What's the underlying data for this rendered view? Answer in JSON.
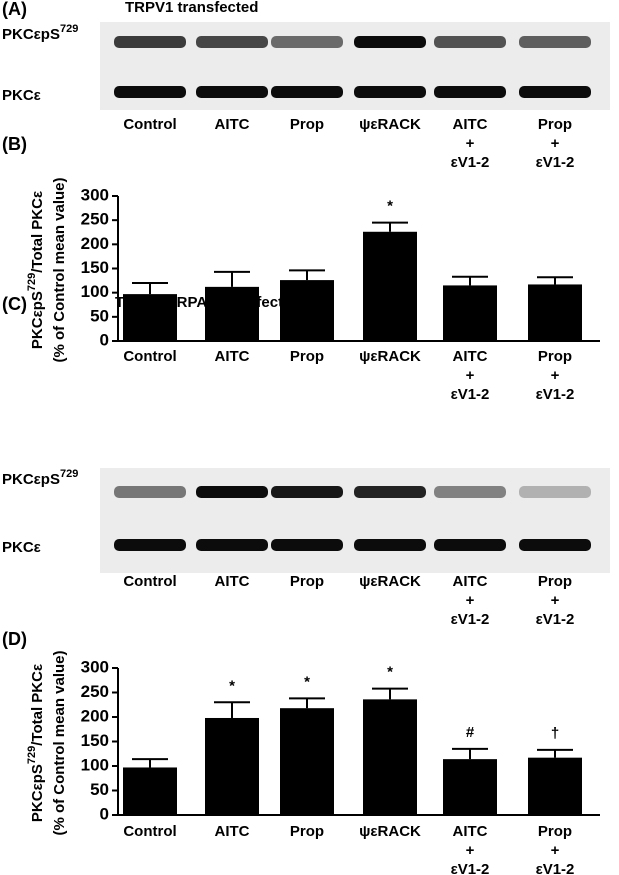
{
  "panels": [
    {
      "label": "(A)",
      "title": "TRPV1 transfected",
      "rows": [
        [
          "PKCεpS",
          "729"
        ],
        [
          "PKCε"
        ]
      ],
      "lanes": [
        [
          "Control"
        ],
        [
          "AITC"
        ],
        [
          "Prop"
        ],
        [
          "ψεRACK"
        ],
        [
          "AITC",
          "+",
          "εV1-2"
        ],
        [
          "Prop",
          "+",
          "εV1-2"
        ]
      ]
    },
    {
      "label": "(C)",
      "title": "TRPV1/TRPA1 transfected",
      "rows": [
        [
          "PKCεpS",
          "729"
        ],
        [
          "PKCε"
        ]
      ],
      "lanes": [
        [
          "Control"
        ],
        [
          "AITC"
        ],
        [
          "Prop"
        ],
        [
          "ψεRACK"
        ],
        [
          "AITC",
          "+",
          "εV1-2"
        ],
        [
          "Prop",
          "+",
          "εV1-2"
        ]
      ]
    }
  ],
  "chart_data": [
    {
      "type": "bar",
      "panel": "(B)",
      "ylabel": [
        "PKCεpS",
        "729",
        "/Total PKCε"
      ],
      "ylabel2": "(% of Control mean value)",
      "categories": [
        [
          "Control"
        ],
        [
          "AITC"
        ],
        [
          "Prop"
        ],
        [
          "ψεRACK"
        ],
        [
          "AITC",
          "+",
          "εV1-2"
        ],
        [
          "Prop",
          "+",
          "εV1-2"
        ]
      ],
      "values": [
        97,
        112,
        126,
        226,
        115,
        117
      ],
      "errors": [
        23,
        31,
        20,
        19,
        18,
        15
      ],
      "annotations": [
        null,
        null,
        null,
        "*",
        null,
        null
      ],
      "color": "#000000",
      "ylim": [
        0,
        300
      ],
      "yticks": [
        0,
        50,
        100,
        150,
        200,
        250,
        300
      ]
    },
    {
      "type": "bar",
      "panel": "(D)",
      "ylabel": [
        "PKCεpS",
        "729",
        "/Total PKCε"
      ],
      "ylabel2": "(% of Control mean value)",
      "categories": [
        [
          "Control"
        ],
        [
          "AITC"
        ],
        [
          "Prop"
        ],
        [
          "ψεRACK"
        ],
        [
          "AITC",
          "+",
          "εV1-2"
        ],
        [
          "Prop",
          "+",
          "εV1-2"
        ]
      ],
      "values": [
        97,
        198,
        218,
        236,
        114,
        117
      ],
      "errors": [
        17,
        32,
        20,
        22,
        21,
        16
      ],
      "annotations": [
        null,
        "*",
        "*",
        "*",
        "#",
        "†"
      ],
      "color": "#000000",
      "ylim": [
        0,
        300
      ],
      "yticks": [
        0,
        50,
        100,
        150,
        200,
        250,
        300
      ]
    }
  ]
}
